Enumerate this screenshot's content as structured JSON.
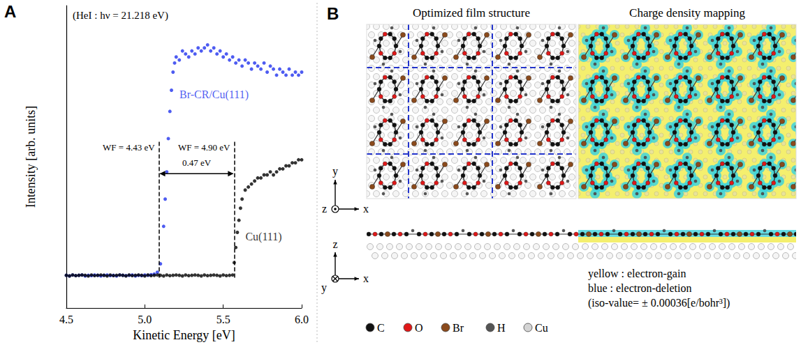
{
  "chart_data": {
    "type": "scatter",
    "panel_label": "A",
    "subtitle": "(HeI : hν = 21.218 eV)",
    "x_label": "Kinetic Energy [eV]",
    "y_label": "Intensity [arb. units]",
    "xlim": [
      4.5,
      6.0
    ],
    "xticks": [
      4.5,
      {
        "value": 5.0,
        "label": "5.0"
      },
      5.5,
      {
        "value": 6.0,
        "label": "6.0"
      }
    ],
    "ylim": [
      0,
      100
    ],
    "tick_labels": "x",
    "grid": false,
    "marker": "circle",
    "series": [
      {
        "name": "Br-CR/Cu(111)",
        "color": "#2233ee",
        "x": [
          4.5,
          4.52,
          4.54,
          4.56,
          4.58,
          4.6,
          4.62,
          4.64,
          4.66,
          4.68,
          4.7,
          4.72,
          4.74,
          4.76,
          4.78,
          4.8,
          4.82,
          4.84,
          4.86,
          4.88,
          4.9,
          4.92,
          4.94,
          4.96,
          4.98,
          5,
          5.02,
          5.04,
          5.06,
          5.08,
          5.1,
          5.12,
          5.13,
          5.14,
          5.15,
          5.16,
          5.17,
          5.18,
          5.19,
          5.2,
          5.22,
          5.24,
          5.26,
          5.28,
          5.3,
          5.32,
          5.34,
          5.36,
          5.38,
          5.4,
          5.42,
          5.44,
          5.46,
          5.48,
          5.5,
          5.52,
          5.54,
          5.56,
          5.58,
          5.6,
          5.62,
          5.64,
          5.66,
          5.68,
          5.7,
          5.72,
          5.74,
          5.76,
          5.78,
          5.8,
          5.82,
          5.84,
          5.86,
          5.88,
          5.9,
          5.92,
          5.94,
          5.96,
          5.98,
          6
        ],
        "values": [
          10.8,
          10.6,
          10.9,
          10.7,
          10.8,
          10.9,
          10.6,
          10.8,
          10.7,
          10.9,
          10.8,
          10.6,
          10.8,
          10.9,
          10.7,
          10.8,
          10.6,
          10.9,
          10.8,
          10.7,
          10.8,
          10.9,
          10.6,
          10.8,
          10.7,
          10.9,
          10.8,
          11,
          11.2,
          11.8,
          14.6,
          27,
          36,
          45,
          56,
          65,
          72,
          78,
          81,
          83,
          82,
          85,
          84,
          83,
          85,
          84,
          86,
          85,
          86,
          87,
          85,
          86,
          84,
          85,
          83,
          84,
          82,
          83,
          81,
          82,
          80,
          82,
          81,
          79,
          81,
          80,
          79,
          81,
          78,
          80,
          79,
          77,
          79,
          78,
          77,
          79,
          77,
          78,
          77,
          78
        ]
      },
      {
        "name": "Cu(111)",
        "color": "#000000",
        "x": [
          4.5,
          4.52,
          4.54,
          4.56,
          4.58,
          4.6,
          4.62,
          4.64,
          4.66,
          4.68,
          4.7,
          4.72,
          4.74,
          4.76,
          4.78,
          4.8,
          4.82,
          4.84,
          4.86,
          4.88,
          4.9,
          4.92,
          4.94,
          4.96,
          4.98,
          5,
          5.02,
          5.04,
          5.06,
          5.08,
          5.1,
          5.12,
          5.14,
          5.16,
          5.18,
          5.2,
          5.22,
          5.24,
          5.26,
          5.28,
          5.3,
          5.32,
          5.34,
          5.36,
          5.38,
          5.4,
          5.42,
          5.44,
          5.46,
          5.48,
          5.5,
          5.52,
          5.54,
          5.56,
          5.57,
          5.58,
          5.59,
          5.6,
          5.61,
          5.62,
          5.64,
          5.66,
          5.68,
          5.7,
          5.72,
          5.74,
          5.76,
          5.78,
          5.8,
          5.82,
          5.84,
          5.86,
          5.88,
          5.9,
          5.92,
          5.94,
          5.96,
          5.98,
          6
        ],
        "values": [
          10.8,
          10.6,
          10.9,
          10.7,
          10.8,
          10.9,
          10.8,
          10.6,
          10.9,
          10.7,
          10.8,
          10.9,
          10.8,
          10.6,
          10.9,
          10.7,
          10.8,
          10.9,
          10.8,
          10.6,
          10.9,
          10.7,
          10.8,
          10.9,
          10.8,
          10.6,
          10.9,
          10.7,
          10.8,
          10.9,
          10.8,
          10.6,
          10.9,
          10.7,
          10.8,
          10.9,
          10.8,
          10.6,
          10.9,
          10.7,
          10.8,
          10.9,
          10.8,
          10.6,
          10.9,
          10.7,
          10.8,
          10.9,
          10.8,
          10.6,
          10.9,
          10.7,
          10.8,
          10.9,
          15,
          20,
          25,
          29,
          33,
          36,
          39,
          40,
          41,
          42,
          43,
          43,
          44,
          44,
          45,
          44,
          45,
          46,
          46,
          47,
          47,
          48,
          48,
          49,
          49
        ]
      }
    ],
    "cutoffs": [
      {
        "x": 5.09,
        "label": "WF = 4.43 eV"
      },
      {
        "x": 5.57,
        "label": "WF = 4.90 eV"
      }
    ],
    "cutoff_ylim": [
      10,
      55
    ],
    "difference_label": "0.47 eV"
  },
  "diagram": {
    "panel_label": "B",
    "titles": [
      "Optimized film structure",
      "Charge density mapping"
    ],
    "top_view_axes": {
      "up": "y",
      "right": "x",
      "out_of_page": "z"
    },
    "side_view_axes": {
      "up": "z",
      "right": "x",
      "into_page": "y"
    },
    "density_legend": [
      "yellow : electron-gain",
      "blue : electron-deletion",
      "(iso-value= ± 0.00036[e/bohr³])"
    ],
    "atoms": [
      {
        "label": "C",
        "color": "#111111"
      },
      {
        "label": "O",
        "color": "#e01818"
      },
      {
        "label": "Br",
        "color": "#8a4a1c"
      },
      {
        "label": "H",
        "color": "#555555"
      },
      {
        "label": "Cu",
        "color": "#d4d4d4"
      }
    ]
  }
}
